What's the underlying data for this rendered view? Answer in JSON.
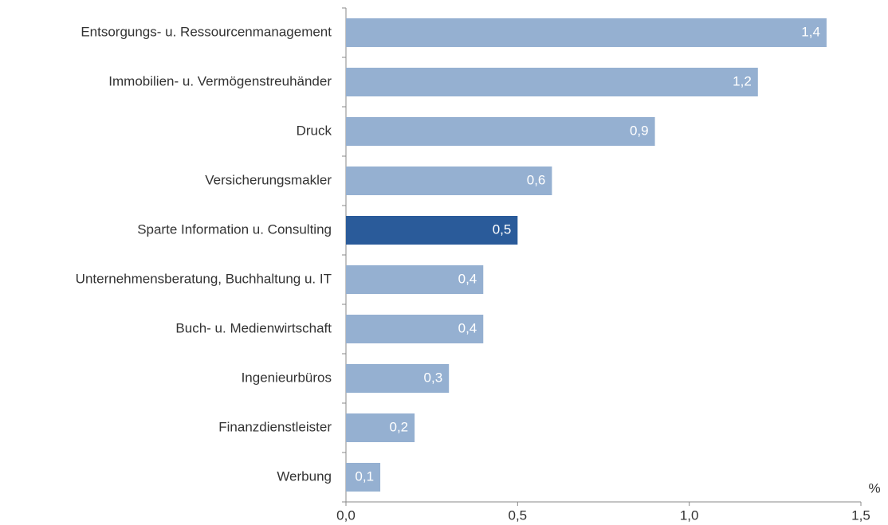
{
  "chart_data": {
    "type": "barh",
    "categories": [
      "Entsorgungs- u. Ressourcenmanagement",
      "Immobilien- u. Vermögenstreuhänder",
      "Druck",
      "Versicherungsmakler",
      "Sparte Information u. Consulting",
      "Unternehmensberatung, Buchhaltung u. IT",
      "Buch- u. Medienwirtschaft",
      "Ingenieurbüros",
      "Finanzdienstleister",
      "Werbung"
    ],
    "values": [
      1.4,
      1.2,
      0.9,
      0.6,
      0.5,
      0.4,
      0.4,
      0.3,
      0.2,
      0.1
    ],
    "value_labels": [
      "1,4",
      "1,2",
      "0,9",
      "0,6",
      "0,5",
      "0,4",
      "0,4",
      "0,3",
      "0,2",
      "0,1"
    ],
    "colors": [
      "#95b0d1",
      "#95b0d1",
      "#95b0d1",
      "#95b0d1",
      "#2a5b9a",
      "#95b0d1",
      "#95b0d1",
      "#95b0d1",
      "#95b0d1",
      "#95b0d1"
    ],
    "xlabel": "%",
    "xlim": [
      0,
      1.5
    ],
    "xticks": [
      {
        "value": 0,
        "label": "0,0"
      },
      {
        "value": 0.5,
        "label": "0,5"
      },
      {
        "value": 1,
        "label": "1,0"
      },
      {
        "value": 1.5,
        "label": "1,5"
      }
    ]
  }
}
